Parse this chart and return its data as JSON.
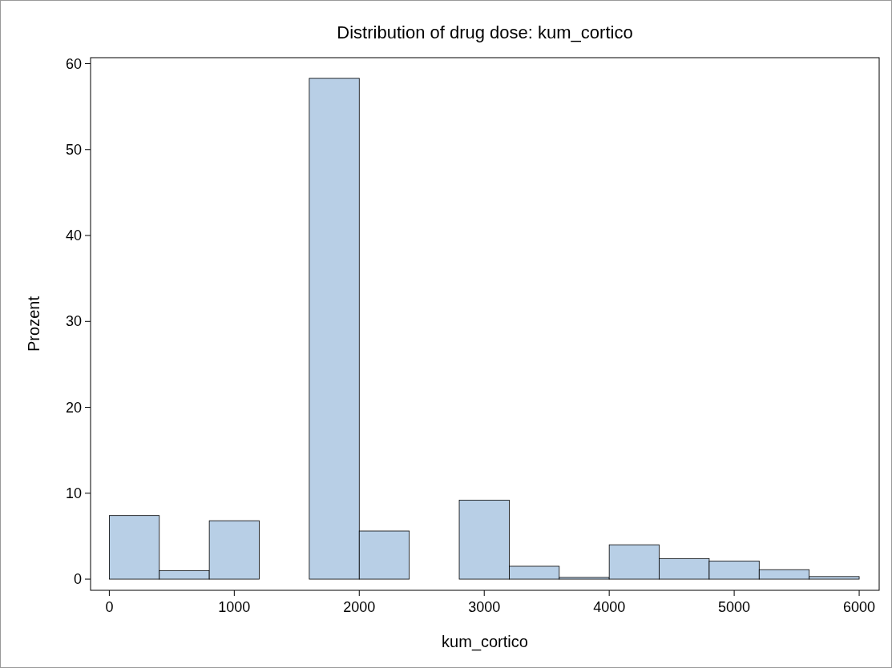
{
  "chart_data": {
    "type": "histogram",
    "title": "Distribution of drug dose: kum_cortico",
    "xlabel": "kum_cortico",
    "ylabel": "Prozent",
    "bins": [
      0,
      400,
      800,
      1200,
      1600,
      2000,
      2400,
      2800,
      3200,
      3600,
      4000,
      4400,
      4800,
      5200,
      5600,
      6000
    ],
    "values": [
      7.4,
      1.0,
      6.8,
      0,
      58.3,
      5.6,
      0,
      9.2,
      1.5,
      0.2,
      4.0,
      2.4,
      2.1,
      1.1,
      0.3
    ],
    "color": "#b8cfe6",
    "xlim": [
      -150,
      6160
    ],
    "xticks": [
      0,
      1000,
      2000,
      3000,
      4000,
      5000,
      6000
    ],
    "ylim": [
      -1.3,
      60.7
    ],
    "yticks": [
      0,
      10,
      20,
      30,
      40,
      50,
      60
    ],
    "grid": false
  }
}
